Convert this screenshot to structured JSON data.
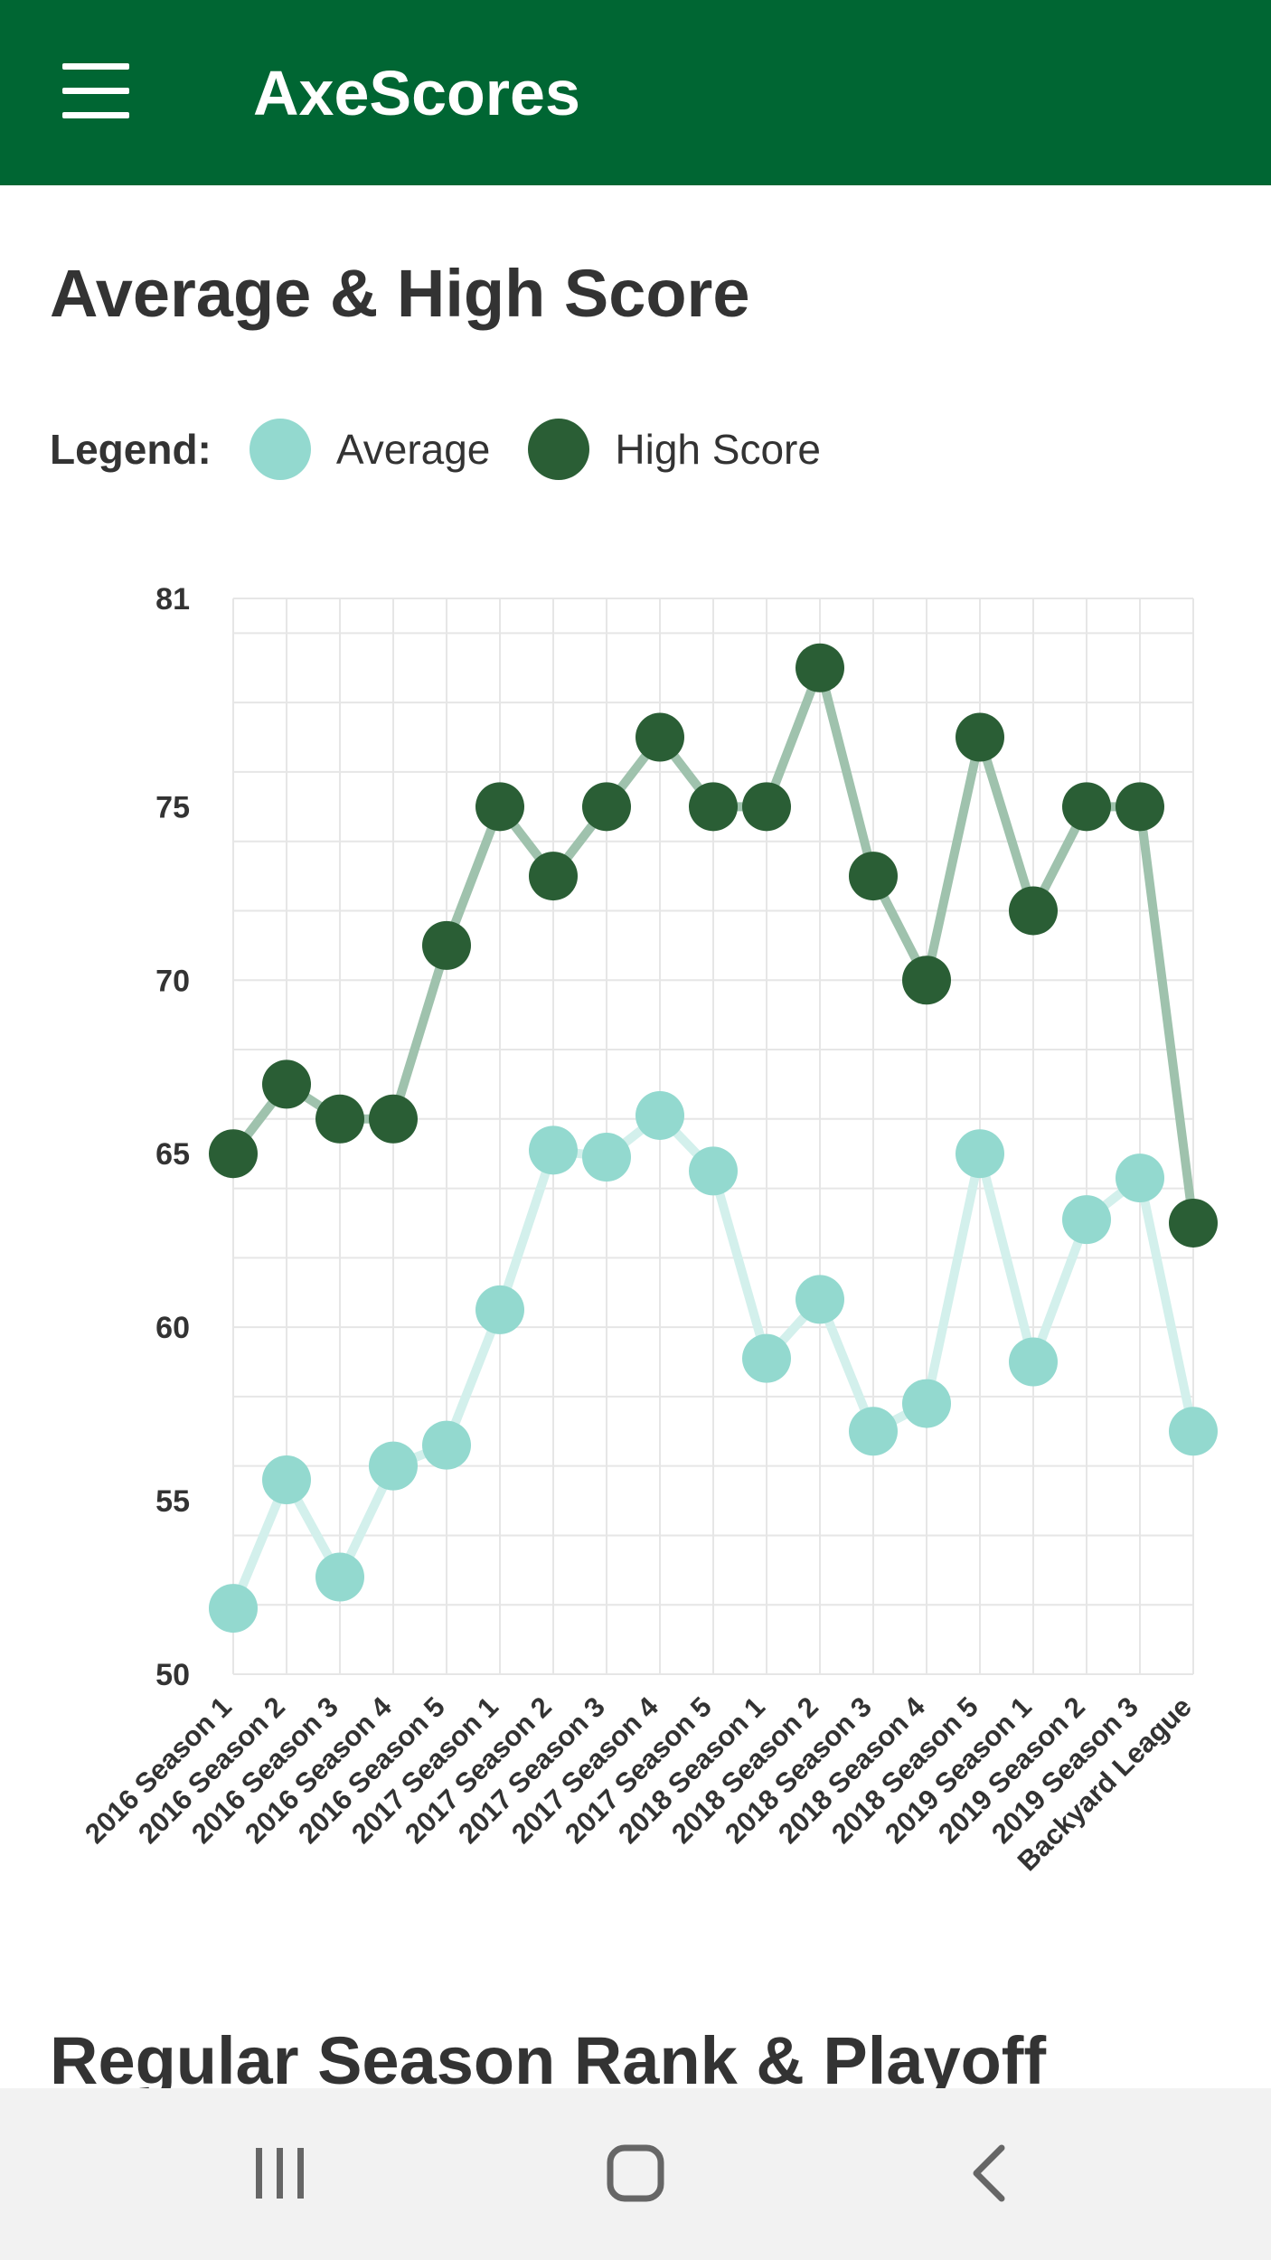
{
  "app": {
    "title": "AxeScores"
  },
  "icons": {
    "menu": "menu-icon",
    "recents": "recents-icon",
    "home": "home-icon",
    "back": "back-icon"
  },
  "colors": {
    "primary": "#006633",
    "average": "#93d9cf",
    "high_score": "#2a5e35"
  },
  "sections": {
    "avg_high": "Average & High Score",
    "rank": "Regular Season Rank & Playoff"
  },
  "legend": {
    "label": "Legend:",
    "items": [
      {
        "name": "Average",
        "color": "#93d9cf"
      },
      {
        "name": "High Score",
        "color": "#2a5e35"
      }
    ]
  },
  "chart_data": {
    "type": "line",
    "title": "Average & High Score",
    "xlabel": "",
    "ylabel": "",
    "ylim": [
      50,
      81
    ],
    "yticks": [
      50,
      55,
      60,
      65,
      70,
      75,
      81
    ],
    "grid": true,
    "legend_position": "top-left",
    "categories": [
      "2016 Season 1",
      "2016 Season 2",
      "2016 Season 3",
      "2016 Season 4",
      "2016 Season 5",
      "2017 Season 1",
      "2017 Season 2",
      "2017 Season 3",
      "2017 Season 4",
      "2017 Season 5",
      "2018 Season 1",
      "2018 Season 2",
      "2018 Season 3",
      "2018 Season 4",
      "2018 Season 5",
      "2019 Season 1",
      "2019 Season 2",
      "2019 Season 3",
      "Backyard League"
    ],
    "series": [
      {
        "name": "Average",
        "color": "#93d9cf",
        "values": [
          51.9,
          55.6,
          52.8,
          56.0,
          56.6,
          60.5,
          65.1,
          64.9,
          66.1,
          64.5,
          59.1,
          60.8,
          57.0,
          57.8,
          65.0,
          59.0,
          63.1,
          64.3,
          57.0
        ]
      },
      {
        "name": "High Score",
        "color": "#2a5e35",
        "values": [
          65,
          67,
          66,
          66,
          71,
          75,
          73,
          75,
          77,
          75,
          75,
          79,
          73,
          70,
          77,
          72,
          75,
          75,
          63
        ]
      }
    ]
  }
}
